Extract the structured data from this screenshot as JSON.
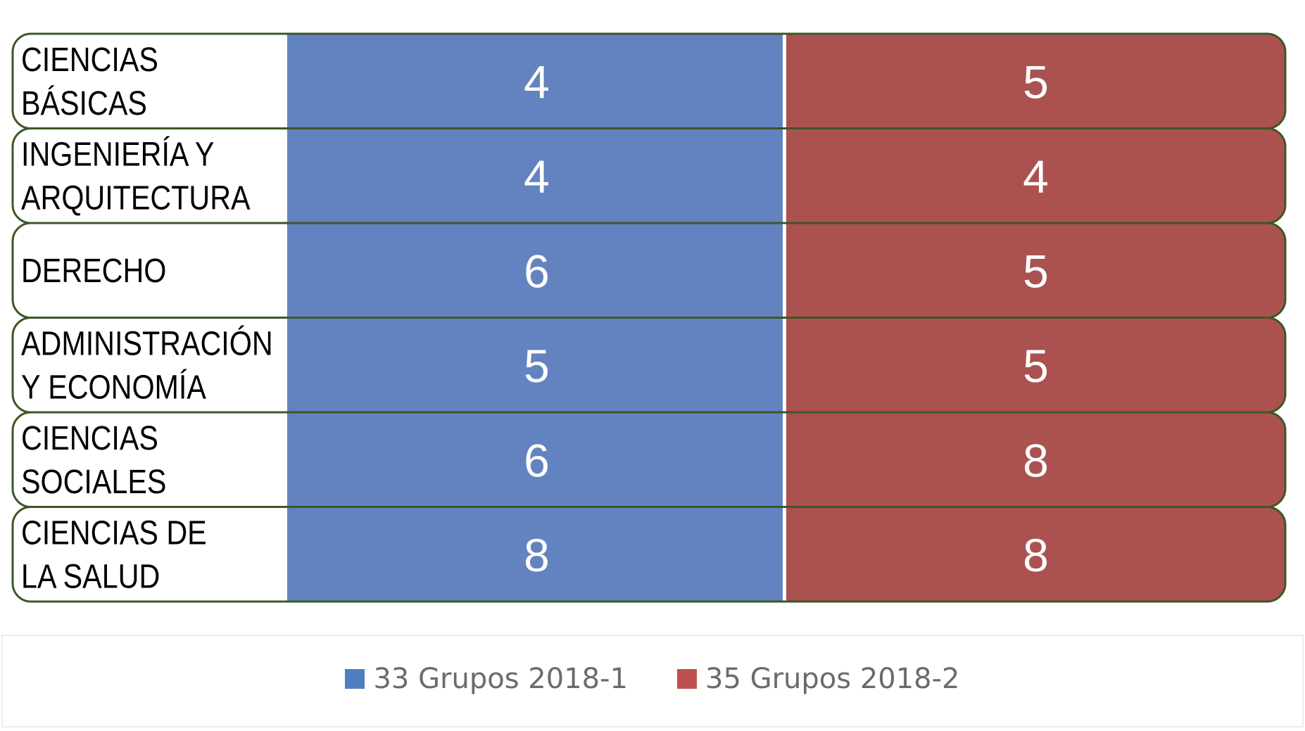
{
  "chart_data": {
    "type": "table",
    "rows": [
      {
        "label_lines": [
          "CIENCIAS",
          "BÁSICAS"
        ],
        "values": [
          "4",
          "5"
        ]
      },
      {
        "label_lines": [
          "INGENIERÍA Y",
          "ARQUITECTURA"
        ],
        "values": [
          "4",
          "4"
        ]
      },
      {
        "label_lines": [
          "DERECHO"
        ],
        "values": [
          "6",
          "5"
        ]
      },
      {
        "label_lines": [
          "ADMINISTRACIÓN",
          "Y ECONOMÍA"
        ],
        "values": [
          "5",
          "5"
        ]
      },
      {
        "label_lines": [
          "CIENCIAS",
          "SOCIALES"
        ],
        "values": [
          "6",
          "8"
        ]
      },
      {
        "label_lines": [
          "CIENCIAS DE",
          "LA SALUD"
        ],
        "values": [
          "8",
          "8"
        ]
      }
    ],
    "series": [
      {
        "name": "33 Grupos 2018-1",
        "color": "#6283bf"
      },
      {
        "name": "35 Grupos 2018-2",
        "color": "#ab5250"
      }
    ],
    "border_color": "#3d5726",
    "legend_position": "bottom"
  }
}
